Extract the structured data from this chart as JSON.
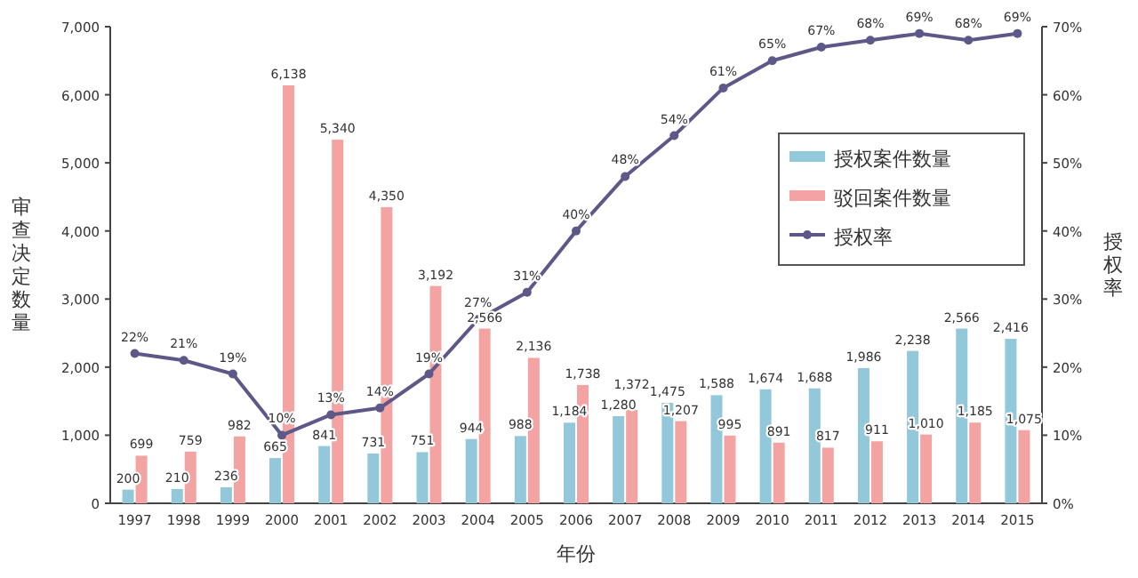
{
  "chart_data": {
    "type": "bar",
    "xlabel": "年份",
    "ylabel": "审查决定数量",
    "y2label": "授权率",
    "categories": [
      "1997",
      "1998",
      "1999",
      "2000",
      "2001",
      "2002",
      "2003",
      "2004",
      "2005",
      "2006",
      "2007",
      "2008",
      "2009",
      "2010",
      "2011",
      "2012",
      "2013",
      "2014",
      "2015"
    ],
    "series": [
      {
        "name": "授权案件数量",
        "color": "#93c8da",
        "values": [
          200,
          210,
          236,
          665,
          841,
          731,
          751,
          944,
          988,
          1184,
          1280,
          1475,
          1588,
          1674,
          1688,
          1986,
          2238,
          2566,
          2416
        ],
        "value_labels": [
          "200",
          "210",
          "236",
          "665",
          "841",
          "731",
          "751",
          "944",
          "988",
          "1,184",
          "1,280",
          "1,475",
          "1,588",
          "1,674",
          "1,688",
          "1,986",
          "2,238",
          "2,566",
          "2,416"
        ]
      },
      {
        "name": "驳回案件数量",
        "color": "#f4a3a3",
        "values": [
          699,
          759,
          982,
          6138,
          5340,
          4350,
          3192,
          2566,
          2136,
          1738,
          1372,
          1207,
          995,
          891,
          817,
          911,
          1010,
          1185,
          1075
        ],
        "value_labels": [
          "699",
          "759",
          "982",
          "6,138",
          "5,340",
          "4,350",
          "3,192",
          "2,566",
          "2,136",
          "1,738",
          "1,372",
          "1,207",
          "995",
          "891",
          "817",
          "911",
          "1,010",
          "1,185",
          "1,075"
        ]
      },
      {
        "name": "授权率",
        "type": "line",
        "axis": "y2",
        "color": "#5e5889",
        "values": [
          22,
          21,
          19,
          10,
          13,
          14,
          19,
          27,
          31,
          40,
          48,
          54,
          61,
          65,
          67,
          68,
          69,
          68,
          69
        ],
        "value_labels": [
          "22%",
          "21%",
          "19%",
          "10%",
          "13%",
          "14%",
          "19%",
          "27%",
          "31%",
          "40%",
          "48%",
          "54%",
          "61%",
          "65%",
          "67%",
          "68%",
          "69%",
          "68%",
          "69%"
        ]
      }
    ],
    "ylim": [
      0,
      7000
    ],
    "yticks": [
      {
        "value": 0,
        "label": "0"
      },
      {
        "value": 1000,
        "label": "1,000"
      },
      {
        "value": 2000,
        "label": "2,000"
      },
      {
        "value": 3000,
        "label": "3,000"
      },
      {
        "value": 4000,
        "label": "4,000"
      },
      {
        "value": 5000,
        "label": "5,000"
      },
      {
        "value": 6000,
        "label": "6,000"
      },
      {
        "value": 7000,
        "label": "7,000"
      }
    ],
    "y2lim": [
      0,
      70
    ],
    "y2ticks": [
      {
        "value": 0,
        "label": "0%"
      },
      {
        "value": 10,
        "label": "10%"
      },
      {
        "value": 20,
        "label": "20%"
      },
      {
        "value": 30,
        "label": "30%"
      },
      {
        "value": 40,
        "label": "40%"
      },
      {
        "value": 50,
        "label": "50%"
      },
      {
        "value": 60,
        "label": "60%"
      },
      {
        "value": 70,
        "label": "70%"
      }
    ],
    "legend": "right",
    "marker": "circle",
    "grid": false
  }
}
